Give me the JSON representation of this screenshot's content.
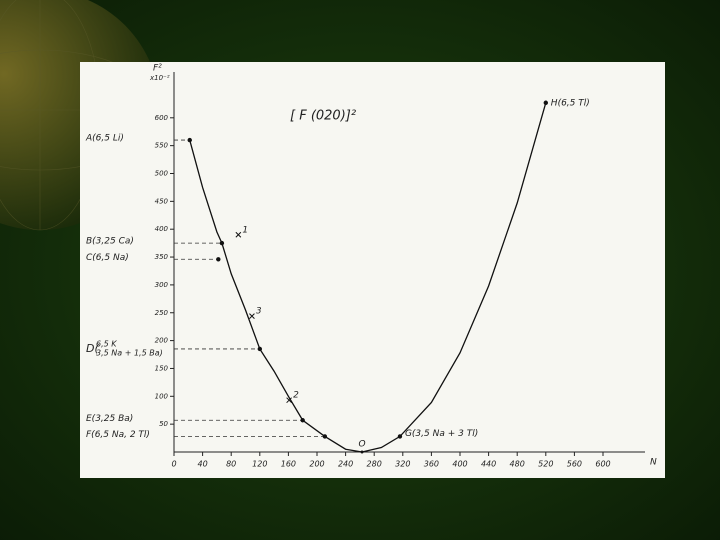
{
  "chart_data": {
    "type": "line",
    "title": "[ F (020)]²",
    "x_label": "N",
    "y_label": "F²",
    "y_unit": "x10⁻²",
    "xlim": [
      0,
      640
    ],
    "ylim": [
      0,
      650
    ],
    "xticks": [
      0,
      40,
      80,
      120,
      160,
      200,
      240,
      280,
      320,
      360,
      400,
      440,
      480,
      520,
      560,
      600
    ],
    "yticks": [
      50,
      100,
      150,
      200,
      250,
      300,
      350,
      400,
      450,
      500,
      550,
      600
    ],
    "color": "#111111",
    "curve": {
      "x": [
        22,
        40,
        60,
        67,
        80,
        100,
        120,
        140,
        160,
        180,
        211,
        240,
        263,
        290,
        316,
        360,
        400,
        440,
        480,
        520
      ],
      "values": [
        560,
        475,
        395,
        375,
        320,
        255,
        185,
        145,
        100,
        57,
        28,
        5,
        0,
        8,
        28,
        89,
        178,
        298,
        447,
        627
      ]
    },
    "points": [
      {
        "label": "A(6,5 Li)",
        "x": 22,
        "value": 560
      },
      {
        "label": "B(3,25 Ca)",
        "x": 67,
        "value": 375
      },
      {
        "label": "C(6,5 Na)",
        "x": 62,
        "value": 346
      },
      {
        "label": "D(",
        "sublabels": [
          "6,5 K",
          "3,5 Na + 1,5 Ba)"
        ],
        "x": 120,
        "value": 185
      },
      {
        "label": "E(3,25 Ba)",
        "x": 180,
        "value": 57
      },
      {
        "label": "F(6,5 Na, 2 Tl)",
        "x": 211,
        "value": 28
      },
      {
        "label": "G(3,5 Na + 3 Tl)",
        "x": 316,
        "value": 28
      },
      {
        "label": "H(6,5 Tl)",
        "x": 520,
        "value": 627
      }
    ],
    "minimum": {
      "label": "O",
      "x": 263,
      "value": 0
    },
    "crosses": [
      {
        "label": "1",
        "x": 90,
        "value": 390
      },
      {
        "label": "2",
        "x": 161,
        "value": 93
      },
      {
        "label": "3",
        "x": 109,
        "value": 244
      }
    ]
  }
}
